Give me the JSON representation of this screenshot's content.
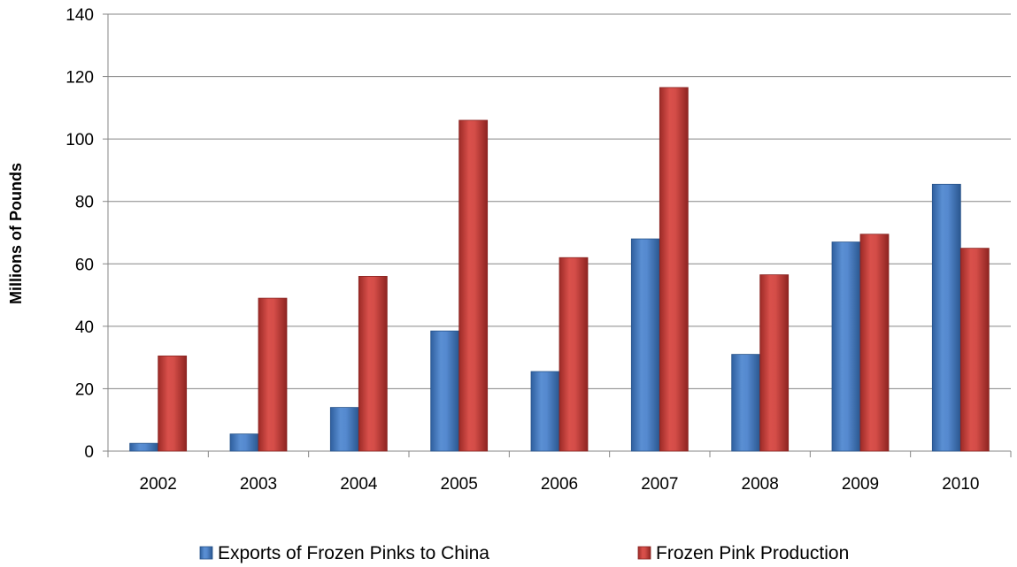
{
  "chart_data": {
    "type": "bar",
    "title": "",
    "xlabel": "",
    "ylabel": "Millions of Pounds",
    "categories": [
      "2002",
      "2003",
      "2004",
      "2005",
      "2006",
      "2007",
      "2008",
      "2009",
      "2010"
    ],
    "series": [
      {
        "name": "Exports of Frozen Pinks to China",
        "color": "#4f81bd",
        "values": [
          2.5,
          5.5,
          14,
          38.5,
          25.5,
          68,
          31,
          67,
          85.5
        ]
      },
      {
        "name": "Frozen Pink Production",
        "color": "#c0504d",
        "values": [
          30.5,
          49,
          56,
          106,
          62,
          116.5,
          56.5,
          69.5,
          65
        ]
      }
    ],
    "ylim": [
      0,
      140
    ],
    "yticks": [
      0,
      20,
      40,
      60,
      80,
      100,
      120,
      140
    ],
    "grid": true,
    "legend_position": "bottom"
  }
}
